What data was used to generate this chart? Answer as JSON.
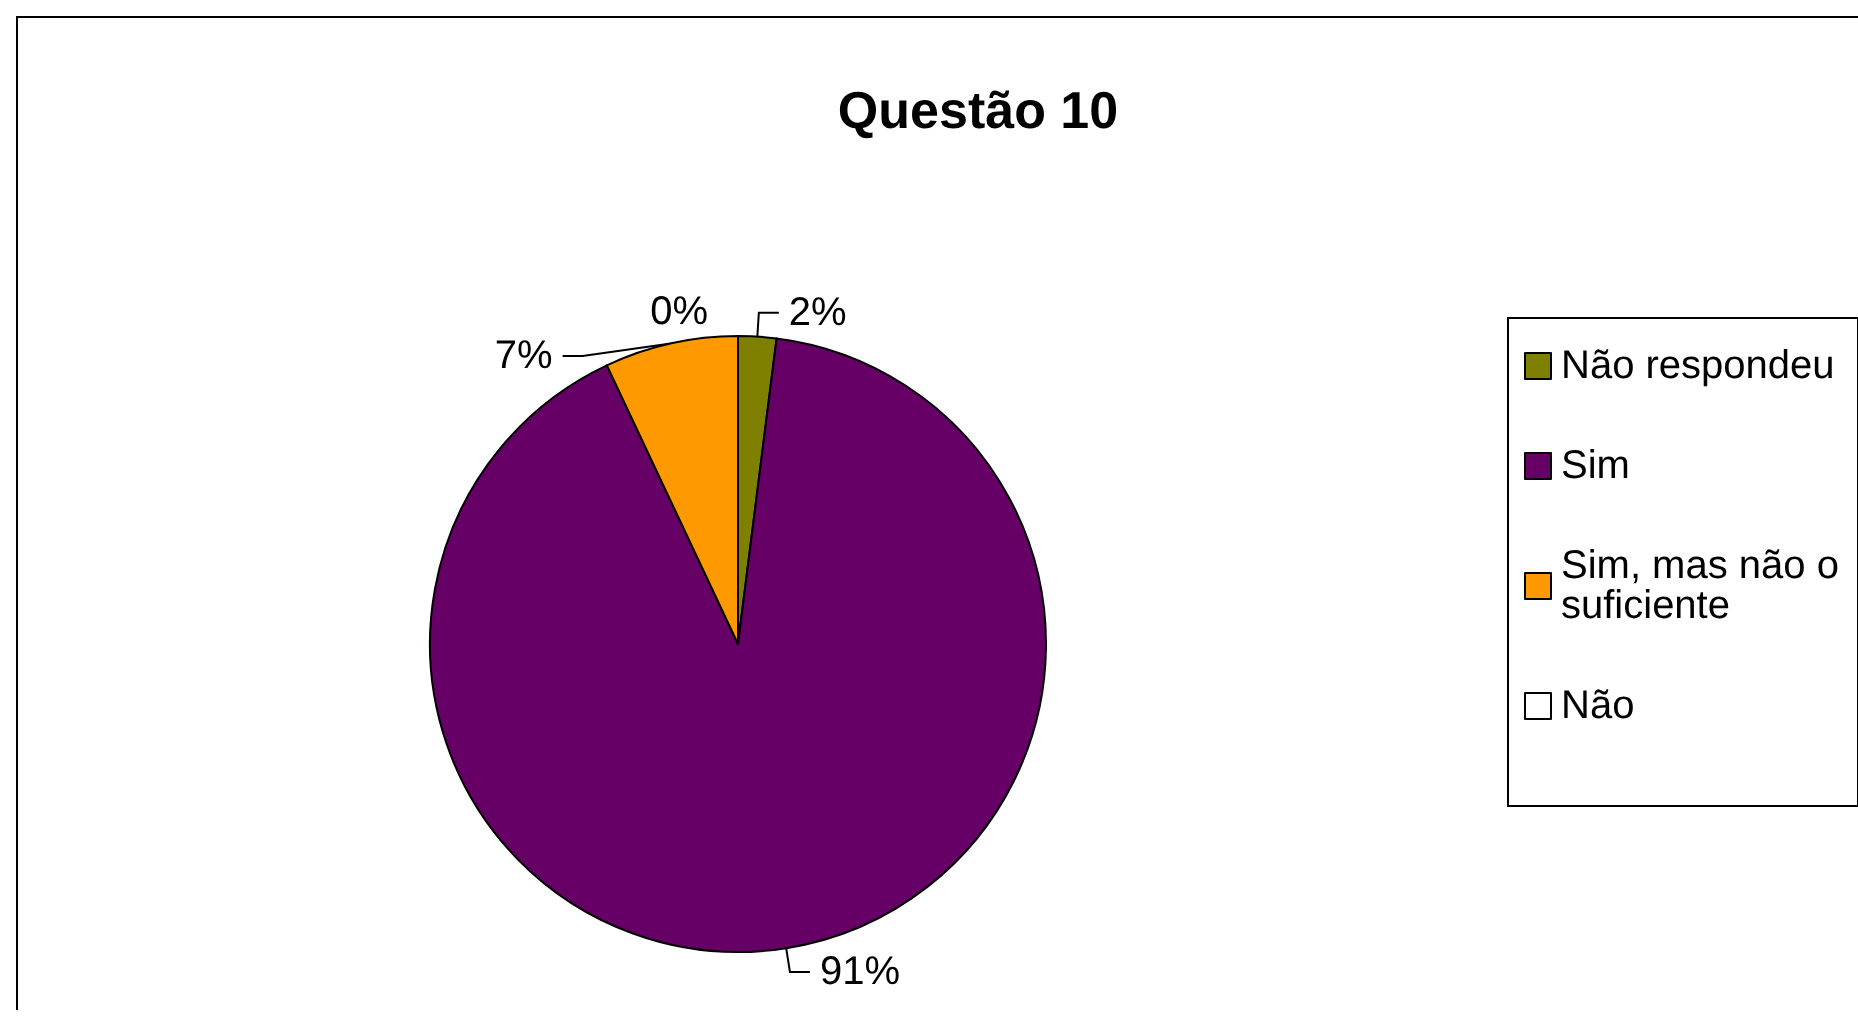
{
  "chart_data": {
    "type": "pie",
    "title": "Questão 10",
    "categories": [
      "Não respondeu",
      "Sim",
      "Sim, mas não o suficiente",
      "Não"
    ],
    "values": [
      2,
      91,
      7,
      0
    ],
    "colors": [
      "#808000",
      "#660066",
      "#ff9900",
      "#ffffff"
    ],
    "value_labels": [
      "2%",
      "91%",
      "7%",
      "0%"
    ],
    "legend": "right"
  }
}
